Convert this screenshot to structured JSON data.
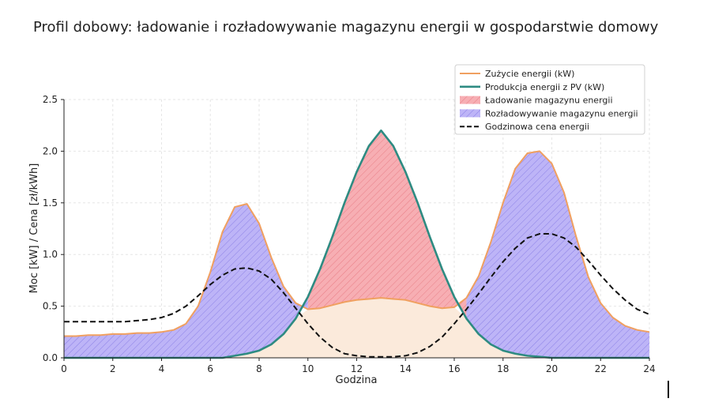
{
  "chart_data": {
    "type": "area",
    "title": "Profil dobowy: ładowanie i rozładowywanie magazynu energii w gospodarstwie domowy",
    "xlabel": "Godzina",
    "ylabel": "Moc [kW] / Cena [zł/kWh]",
    "xlim": [
      0,
      24
    ],
    "ylim": [
      0,
      2.5
    ],
    "xticks": [
      "0",
      "2",
      "4",
      "6",
      "8",
      "10",
      "12",
      "14",
      "16",
      "18",
      "20",
      "22",
      "24"
    ],
    "yticks": [
      "0.0",
      "0.5",
      "1.0",
      "1.5",
      "2.0",
      "2.5"
    ],
    "grid": true,
    "legend_position": "top-right",
    "x": [
      0,
      0.5,
      1,
      1.5,
      2,
      2.5,
      3,
      3.5,
      4,
      4.5,
      5,
      5.5,
      6,
      6.5,
      7,
      7.5,
      8,
      8.5,
      9,
      9.5,
      10,
      10.5,
      11,
      11.5,
      12,
      12.5,
      13,
      13.5,
      14,
      14.5,
      15,
      15.5,
      16,
      16.5,
      17,
      17.5,
      18,
      18.5,
      19,
      19.5,
      20,
      20.5,
      21,
      21.5,
      22,
      22.5,
      23,
      23.5,
      24
    ],
    "series": [
      {
        "name": "Zużycie energii (kW)",
        "color": "#f0a060",
        "style": "solid",
        "values": [
          0.21,
          0.21,
          0.22,
          0.22,
          0.23,
          0.23,
          0.24,
          0.24,
          0.25,
          0.27,
          0.33,
          0.5,
          0.83,
          1.22,
          1.46,
          1.49,
          1.3,
          0.97,
          0.69,
          0.53,
          0.47,
          0.48,
          0.51,
          0.54,
          0.56,
          0.57,
          0.58,
          0.57,
          0.56,
          0.53,
          0.5,
          0.48,
          0.49,
          0.58,
          0.79,
          1.12,
          1.5,
          1.83,
          1.98,
          2.0,
          1.88,
          1.6,
          1.17,
          0.78,
          0.53,
          0.39,
          0.31,
          0.27,
          0.25
        ]
      },
      {
        "name": "Produkcja energii z PV (kW)",
        "color": "#2e8b82",
        "style": "solid",
        "values": [
          0,
          0,
          0,
          0,
          0,
          0,
          0,
          0,
          0,
          0,
          0,
          0,
          0,
          0,
          0.02,
          0.04,
          0.07,
          0.13,
          0.23,
          0.38,
          0.59,
          0.86,
          1.17,
          1.5,
          1.8,
          2.05,
          2.2,
          2.05,
          1.8,
          1.5,
          1.17,
          0.86,
          0.59,
          0.38,
          0.23,
          0.13,
          0.07,
          0.04,
          0.02,
          0.01,
          0,
          0,
          0,
          0,
          0,
          0,
          0,
          0,
          0
        ]
      },
      {
        "name": "Godzinowa cena energii",
        "color": "#111111",
        "style": "dashed",
        "values": [
          0.35,
          0.35,
          0.35,
          0.35,
          0.35,
          0.35,
          0.36,
          0.37,
          0.39,
          0.43,
          0.5,
          0.6,
          0.71,
          0.8,
          0.86,
          0.87,
          0.84,
          0.76,
          0.63,
          0.48,
          0.33,
          0.2,
          0.1,
          0.04,
          0.02,
          0.01,
          0.01,
          0.01,
          0.02,
          0.05,
          0.11,
          0.2,
          0.33,
          0.47,
          0.62,
          0.78,
          0.93,
          1.06,
          1.16,
          1.2,
          1.2,
          1.16,
          1.07,
          0.94,
          0.8,
          0.67,
          0.56,
          0.47,
          0.42
        ]
      }
    ],
    "fills": [
      {
        "name": "Ładowanie magazynu energii",
        "color": "#f7a8ad",
        "hatch": true
      },
      {
        "name": "Rozładowywanie magazynu energii",
        "color": "#b8aef7",
        "hatch": true
      }
    ],
    "base_fill_color": "#fbeadb"
  }
}
